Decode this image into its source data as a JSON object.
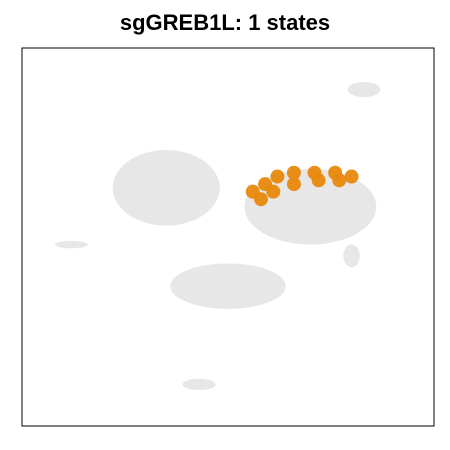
{
  "chart_data": {
    "type": "scatter",
    "title": "sgGREB1L: 1 states",
    "xlabel": "",
    "ylabel": "",
    "grid": false,
    "legend": "none",
    "background_points_color": "#e6e6e6",
    "highlight_color": "#e8890c",
    "series": [
      {
        "role": "background",
        "regions": [
          {
            "label": "large-left-lobe",
            "cx": 0.35,
            "cy": 0.63,
            "rx": 0.13,
            "ry": 0.1
          },
          {
            "label": "upper-right-ring",
            "cx": 0.7,
            "cy": 0.58,
            "rx": 0.16,
            "ry": 0.1
          },
          {
            "label": "lower-arc",
            "cx": 0.5,
            "cy": 0.37,
            "rx": 0.14,
            "ry": 0.06
          },
          {
            "label": "top-right-small",
            "cx": 0.83,
            "cy": 0.89,
            "rx": 0.04,
            "ry": 0.02
          },
          {
            "label": "left-small",
            "cx": 0.12,
            "cy": 0.48,
            "rx": 0.04,
            "ry": 0.01
          },
          {
            "label": "right-small",
            "cx": 0.8,
            "cy": 0.45,
            "rx": 0.02,
            "ry": 0.03
          },
          {
            "label": "bottom-small",
            "cx": 0.43,
            "cy": 0.11,
            "rx": 0.04,
            "ry": 0.015
          }
        ]
      },
      {
        "role": "highlight",
        "points": [
          {
            "x": 0.56,
            "y": 0.62
          },
          {
            "x": 0.59,
            "y": 0.64
          },
          {
            "x": 0.62,
            "y": 0.66
          },
          {
            "x": 0.66,
            "y": 0.67
          },
          {
            "x": 0.71,
            "y": 0.67
          },
          {
            "x": 0.76,
            "y": 0.67
          },
          {
            "x": 0.8,
            "y": 0.66
          },
          {
            "x": 0.61,
            "y": 0.62
          },
          {
            "x": 0.66,
            "y": 0.64
          },
          {
            "x": 0.58,
            "y": 0.6
          },
          {
            "x": 0.72,
            "y": 0.65
          },
          {
            "x": 0.77,
            "y": 0.65
          }
        ]
      }
    ]
  }
}
